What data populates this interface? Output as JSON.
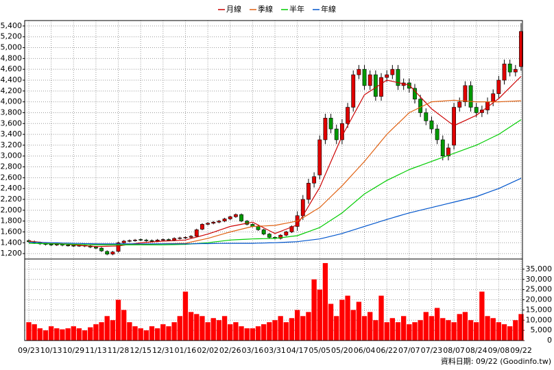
{
  "chart_data": {
    "type": "candlestick",
    "categories": [
      "09/23",
      null,
      null,
      null,
      "10/13",
      null,
      null,
      null,
      "10/29",
      null,
      null,
      null,
      "11/13",
      null,
      null,
      null,
      "11/28",
      null,
      null,
      null,
      "12/15",
      null,
      null,
      null,
      "12/31",
      null,
      null,
      null,
      "01/16",
      null,
      null,
      null,
      "02/02",
      null,
      null,
      null,
      "02/26",
      null,
      null,
      null,
      "03/16",
      null,
      null,
      null,
      "03/31",
      null,
      null,
      null,
      "04/17",
      null,
      null,
      null,
      "05/05",
      null,
      null,
      null,
      "05/20",
      null,
      null,
      null,
      "06/04",
      null,
      null,
      null,
      "06/22",
      null,
      null,
      null,
      "07/07",
      null,
      null,
      null,
      "07/23",
      null,
      null,
      null,
      "08/07",
      null,
      null,
      null,
      "08/24",
      null,
      null,
      null,
      "09/08",
      null,
      null,
      null,
      "09/22"
    ],
    "open": [
      1440,
      1420,
      1400,
      1380,
      1370,
      1360,
      1370,
      1355,
      1350,
      1345,
      1350,
      1340,
      1320,
      1300,
      1240,
      1190,
      1240,
      1400,
      1430,
      1440,
      1460,
      1450,
      1440,
      1430,
      1450,
      1460,
      1450,
      1480,
      1490,
      1500,
      1520,
      1650,
      1740,
      1760,
      1780,
      1800,
      1840,
      1880,
      1920,
      1800,
      1740,
      1700,
      1640,
      1560,
      1500,
      1480,
      1540,
      1600,
      1700,
      1900,
      2200,
      2500,
      2650,
      3300,
      3700,
      3500,
      3300,
      3600,
      3900,
      4500,
      4600,
      4300,
      4500,
      4100,
      4450,
      4500,
      4600,
      4300,
      4350,
      4250,
      4050,
      3800,
      3650,
      3500,
      3300,
      3000,
      3200,
      3900,
      4000,
      4300,
      3900,
      3800,
      3850,
      4000,
      4150,
      4400,
      4700,
      4550,
      4650
    ],
    "high": [
      1460,
      1440,
      1420,
      1400,
      1390,
      1390,
      1390,
      1375,
      1370,
      1370,
      1370,
      1360,
      1340,
      1320,
      1260,
      1250,
      1420,
      1450,
      1460,
      1470,
      1480,
      1470,
      1460,
      1470,
      1480,
      1480,
      1500,
      1510,
      1520,
      1540,
      1660,
      1760,
      1780,
      1800,
      1820,
      1860,
      1900,
      1940,
      1940,
      1820,
      1760,
      1720,
      1660,
      1580,
      1520,
      1560,
      1620,
      1720,
      1980,
      2280,
      2580,
      2700,
      3380,
      3780,
      3780,
      3580,
      3680,
      3980,
      4580,
      4680,
      4680,
      4580,
      4580,
      4530,
      4580,
      4680,
      4680,
      4430,
      4430,
      4330,
      4130,
      3880,
      3730,
      3580,
      3380,
      3230,
      3980,
      4080,
      4380,
      4380,
      3980,
      3930,
      4080,
      4230,
      4480,
      4780,
      4780,
      4680,
      5450
    ],
    "low": [
      1400,
      1380,
      1360,
      1350,
      1340,
      1340,
      1335,
      1330,
      1325,
      1325,
      1320,
      1300,
      1280,
      1230,
      1170,
      1170,
      1220,
      1380,
      1410,
      1420,
      1430,
      1420,
      1410,
      1410,
      1430,
      1430,
      1430,
      1460,
      1470,
      1480,
      1500,
      1630,
      1720,
      1740,
      1760,
      1780,
      1820,
      1860,
      1780,
      1720,
      1680,
      1620,
      1540,
      1480,
      1460,
      1460,
      1520,
      1580,
      1620,
      1820,
      2120,
      2420,
      2570,
      3220,
      3420,
      3220,
      3220,
      3520,
      3820,
      4420,
      4220,
      4220,
      4020,
      4020,
      4370,
      4420,
      4220,
      4220,
      4170,
      3970,
      3720,
      3570,
      3420,
      3220,
      2920,
      2920,
      3120,
      3820,
      3920,
      3820,
      3720,
      3720,
      3770,
      3920,
      4070,
      4320,
      4470,
      4470,
      4570
    ],
    "close": [
      1420,
      1400,
      1380,
      1370,
      1360,
      1370,
      1355,
      1350,
      1345,
      1350,
      1340,
      1320,
      1300,
      1250,
      1190,
      1230,
      1400,
      1430,
      1440,
      1450,
      1450,
      1440,
      1430,
      1450,
      1460,
      1450,
      1480,
      1490,
      1500,
      1520,
      1640,
      1740,
      1760,
      1780,
      1800,
      1840,
      1880,
      1920,
      1800,
      1740,
      1700,
      1640,
      1560,
      1500,
      1480,
      1540,
      1600,
      1700,
      1900,
      2200,
      2500,
      2620,
      3300,
      3700,
      3500,
      3300,
      3600,
      3900,
      4500,
      4600,
      4300,
      4500,
      4100,
      4450,
      4500,
      4600,
      4300,
      4350,
      4250,
      4050,
      3800,
      3650,
      3500,
      3300,
      3000,
      3150,
      3900,
      4000,
      4300,
      3900,
      3800,
      3850,
      4000,
      4150,
      4400,
      4700,
      4550,
      4600,
      5300
    ],
    "up_color": "#e00000",
    "down_color": "#009900",
    "series": [
      {
        "name": "月線",
        "color": "#cc0000",
        "values": [
          1430,
          1420,
          1410,
          1400,
          1390,
          1383,
          1375,
          1368,
          1360,
          1353,
          1345,
          1338,
          1330,
          1333,
          1335,
          1338,
          1340,
          1355,
          1370,
          1385,
          1400,
          1408,
          1415,
          1423,
          1430,
          1435,
          1440,
          1445,
          1450,
          1478,
          1505,
          1533,
          1560,
          1595,
          1630,
          1665,
          1700,
          1720,
          1740,
          1760,
          1780,
          1728,
          1675,
          1623,
          1570,
          1610,
          1650,
          1690,
          1730,
          1903,
          2075,
          2248,
          2420,
          2658,
          2895,
          3133,
          3370,
          3560,
          3750,
          3940,
          4130,
          4198,
          4265,
          4333,
          4400,
          4378,
          4355,
          4333,
          4310,
          4200,
          4090,
          3980,
          3870,
          3793,
          3715,
          3638,
          3560,
          3608,
          3655,
          3703,
          3750,
          3828,
          3905,
          3983,
          4060,
          4163,
          4265,
          4368,
          4470
        ]
      },
      {
        "name": "季線",
        "color": "#e06010",
        "values": [
          1420,
          1413,
          1405,
          1398,
          1390,
          1385,
          1380,
          1375,
          1370,
          1368,
          1365,
          1363,
          1360,
          1360,
          1360,
          1360,
          1360,
          1363,
          1365,
          1368,
          1370,
          1373,
          1375,
          1378,
          1380,
          1383,
          1385,
          1388,
          1390,
          1413,
          1435,
          1458,
          1480,
          1510,
          1540,
          1570,
          1600,
          1625,
          1650,
          1675,
          1700,
          1705,
          1710,
          1715,
          1720,
          1740,
          1760,
          1780,
          1800,
          1863,
          1925,
          1988,
          2050,
          2150,
          2250,
          2350,
          2450,
          2563,
          2675,
          2788,
          2900,
          3025,
          3150,
          3275,
          3400,
          3500,
          3600,
          3700,
          3800,
          3850,
          3900,
          3950,
          4000,
          4008,
          4015,
          4023,
          4030,
          4023,
          4015,
          4008,
          4000,
          4000,
          4000,
          4000,
          4000,
          4005,
          4010,
          4015,
          4020
        ]
      },
      {
        "name": "半年",
        "color": "#00cc00",
        "values": [
          1390,
          1388,
          1385,
          1383,
          1380,
          1378,
          1375,
          1373,
          1370,
          1368,
          1365,
          1363,
          1360,
          1360,
          1360,
          1360,
          1360,
          1360,
          1360,
          1360,
          1360,
          1360,
          1360,
          1360,
          1360,
          1363,
          1365,
          1368,
          1370,
          1378,
          1385,
          1393,
          1400,
          1413,
          1425,
          1438,
          1450,
          1455,
          1460,
          1465,
          1470,
          1473,
          1475,
          1478,
          1480,
          1493,
          1505,
          1518,
          1530,
          1568,
          1605,
          1643,
          1680,
          1748,
          1815,
          1883,
          1950,
          2038,
          2125,
          2213,
          2300,
          2363,
          2425,
          2488,
          2550,
          2600,
          2650,
          2700,
          2750,
          2788,
          2825,
          2863,
          2900,
          2938,
          2975,
          3013,
          3050,
          3088,
          3125,
          3163,
          3200,
          3250,
          3300,
          3350,
          3400,
          3468,
          3535,
          3603,
          3670
        ]
      },
      {
        "name": "年線",
        "color": "#0055cc",
        "values": [
          1410,
          1408,
          1405,
          1403,
          1400,
          1398,
          1395,
          1393,
          1390,
          1388,
          1385,
          1383,
          1380,
          1380,
          1380,
          1380,
          1380,
          1380,
          1380,
          1380,
          1380,
          1380,
          1380,
          1380,
          1380,
          1380,
          1380,
          1380,
          1380,
          1381,
          1383,
          1384,
          1385,
          1386,
          1388,
          1389,
          1390,
          1390,
          1390,
          1390,
          1390,
          1393,
          1395,
          1398,
          1400,
          1405,
          1410,
          1415,
          1420,
          1433,
          1445,
          1458,
          1470,
          1495,
          1520,
          1545,
          1570,
          1603,
          1635,
          1668,
          1700,
          1733,
          1765,
          1798,
          1830,
          1860,
          1890,
          1920,
          1950,
          1975,
          2000,
          2025,
          2050,
          2075,
          2100,
          2125,
          2150,
          2175,
          2200,
          2225,
          2250,
          2288,
          2325,
          2363,
          2400,
          2448,
          2495,
          2543,
          2590
        ]
      }
    ],
    "ylim": [
      1100,
      5500
    ],
    "yticks": [
      {
        "value": 1200,
        "label": "1,200"
      },
      {
        "value": 1400,
        "label": "1,400"
      },
      {
        "value": 1600,
        "label": "1,600"
      },
      {
        "value": 1800,
        "label": "1,800"
      },
      {
        "value": 2000,
        "label": "2,000"
      },
      {
        "value": 2200,
        "label": "2,200"
      },
      {
        "value": 2400,
        "label": "2,400"
      },
      {
        "value": 2600,
        "label": "2,600"
      },
      {
        "value": 2800,
        "label": "2,800"
      },
      {
        "value": 3000,
        "label": "3,000"
      },
      {
        "value": 3200,
        "label": "3,200"
      },
      {
        "value": 3400,
        "label": "3,400"
      },
      {
        "value": 3600,
        "label": "3,600"
      },
      {
        "value": 3800,
        "label": "3,800"
      },
      {
        "value": 4000,
        "label": "4,000"
      },
      {
        "value": 4200,
        "label": "4,200"
      },
      {
        "value": 4400,
        "label": "4,400"
      },
      {
        "value": 4600,
        "label": "4,600"
      },
      {
        "value": 4800,
        "label": "4,800"
      },
      {
        "value": 5000,
        "label": "5,000"
      },
      {
        "value": 5200,
        "label": "5,200"
      },
      {
        "value": 5400,
        "label": "5,400"
      }
    ],
    "grid": true,
    "legend": "top",
    "volume": {
      "type": "bar",
      "color": "#ff0000",
      "values": [
        9000,
        8000,
        6000,
        5000,
        7000,
        6000,
        5500,
        6000,
        7000,
        6000,
        5000,
        6500,
        8000,
        9000,
        12000,
        10000,
        20000,
        15000,
        9000,
        7000,
        6000,
        5000,
        7000,
        6000,
        8000,
        7000,
        9000,
        12000,
        24000,
        14000,
        13000,
        12000,
        9000,
        11000,
        10000,
        12000,
        8000,
        9000,
        7000,
        6000,
        6000,
        7000,
        8000,
        9000,
        10000,
        12000,
        9000,
        11000,
        15000,
        12000,
        14000,
        30000,
        25000,
        38000,
        18000,
        12000,
        20000,
        22000,
        15000,
        19000,
        12000,
        14000,
        10000,
        22000,
        9000,
        11000,
        9000,
        12000,
        8000,
        9000,
        10000,
        14000,
        12000,
        16000,
        11000,
        10000,
        9000,
        13000,
        14000,
        10000,
        9000,
        24000,
        12000,
        11000,
        9000,
        8000,
        7000,
        10000,
        13000
      ],
      "ylim": [
        0,
        40000
      ],
      "yticks": [
        0,
        {
          "value": 5000,
          "label": "5,000"
        },
        {
          "value": 10000,
          "label": "10,000"
        },
        {
          "value": 15000,
          "label": "15,000"
        },
        {
          "value": 20000,
          "label": "20,000"
        },
        {
          "value": 25000,
          "label": "25,000"
        },
        {
          "value": 30000,
          "label": "30,000"
        },
        {
          "value": 35000,
          "label": "35,000"
        }
      ]
    },
    "footer": "資料日期: 09/22 (Goodinfo.tw)"
  }
}
